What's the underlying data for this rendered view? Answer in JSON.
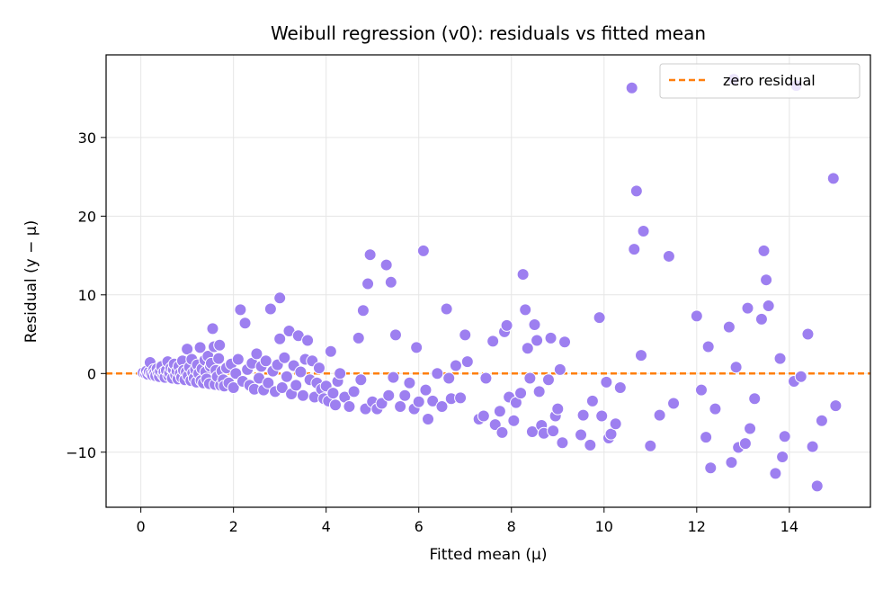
{
  "chart_data": {
    "type": "scatter",
    "title": "Weibull regression (v0): residuals vs fitted mean",
    "xlabel": "Fitted mean (μ)",
    "ylabel": "Residual (y − μ)",
    "xlim": [
      -0.75,
      15.75
    ],
    "ylim": [
      -17,
      40.5
    ],
    "xticks": [
      0,
      2,
      4,
      6,
      8,
      10,
      12,
      14
    ],
    "xtick_labels": [
      "0",
      "2",
      "4",
      "6",
      "8",
      "10",
      "12",
      "14"
    ],
    "yticks": [
      -10,
      0,
      10,
      20,
      30
    ],
    "ytick_labels": [
      "−10",
      "0",
      "10",
      "20",
      "30"
    ],
    "grid": true,
    "legend_position": "top-right",
    "reference_line": {
      "y": 0,
      "style": "dashed",
      "label": "zero residual",
      "color": "#ff7f0e"
    },
    "point_color": "#9d7ff0",
    "series": [
      {
        "points": [
          [
            0.05,
            0.1
          ],
          [
            0.1,
            0.0
          ],
          [
            0.12,
            0.3
          ],
          [
            0.15,
            -0.1
          ],
          [
            0.18,
            0.2
          ],
          [
            0.2,
            1.4
          ],
          [
            0.22,
            0.0
          ],
          [
            0.25,
            -0.2
          ],
          [
            0.28,
            0.5
          ],
          [
            0.3,
            0.1
          ],
          [
            0.32,
            -0.3
          ],
          [
            0.35,
            0.6
          ],
          [
            0.38,
            0.0
          ],
          [
            0.4,
            -0.4
          ],
          [
            0.42,
            0.3
          ],
          [
            0.45,
            0.9
          ],
          [
            0.48,
            -0.2
          ],
          [
            0.5,
            0.2
          ],
          [
            0.52,
            -0.5
          ],
          [
            0.55,
            0.4
          ],
          [
            0.58,
            1.5
          ],
          [
            0.6,
            -0.3
          ],
          [
            0.62,
            0.1
          ],
          [
            0.65,
            0.7
          ],
          [
            0.68,
            -0.6
          ],
          [
            0.7,
            0.5
          ],
          [
            0.72,
            1.2
          ],
          [
            0.75,
            -0.2
          ],
          [
            0.78,
            0.3
          ],
          [
            0.8,
            -0.7
          ],
          [
            0.82,
            0.9
          ],
          [
            0.85,
            0.0
          ],
          [
            0.88,
            -0.5
          ],
          [
            0.9,
            1.6
          ],
          [
            0.92,
            0.4
          ],
          [
            0.95,
            -0.8
          ],
          [
            0.98,
            0.2
          ],
          [
            1.0,
            3.1
          ],
          [
            1.02,
            -0.3
          ],
          [
            1.05,
            0.8
          ],
          [
            1.08,
            -0.9
          ],
          [
            1.1,
            1.8
          ],
          [
            1.12,
            0.1
          ],
          [
            1.15,
            -0.6
          ],
          [
            1.18,
            0.5
          ],
          [
            1.2,
            -1.1
          ],
          [
            1.22,
            1.1
          ],
          [
            1.25,
            0.0
          ],
          [
            1.28,
            3.3
          ],
          [
            1.3,
            -0.9
          ],
          [
            1.32,
            0.6
          ],
          [
            1.35,
            -1.2
          ],
          [
            1.38,
            1.7
          ],
          [
            1.4,
            0.2
          ],
          [
            1.42,
            -0.7
          ],
          [
            1.45,
            2.2
          ],
          [
            1.48,
            -1.3
          ],
          [
            1.5,
            0.9
          ],
          [
            1.52,
            1.3
          ],
          [
            1.55,
            5.7
          ],
          [
            1.58,
            3.4
          ],
          [
            1.6,
            -1.4
          ],
          [
            1.62,
            0.4
          ],
          [
            1.65,
            -0.4
          ],
          [
            1.68,
            1.9
          ],
          [
            1.7,
            3.6
          ],
          [
            1.72,
            -1.5
          ],
          [
            1.75,
            0.3
          ],
          [
            1.78,
            -0.8
          ],
          [
            1.8,
            -1.6
          ],
          [
            1.85,
            0.7
          ],
          [
            1.9,
            -1.2
          ],
          [
            1.95,
            1.2
          ],
          [
            2.0,
            -1.8
          ],
          [
            2.05,
            0.0
          ],
          [
            2.1,
            1.8
          ],
          [
            2.15,
            8.1
          ],
          [
            2.2,
            -1.0
          ],
          [
            2.25,
            6.4
          ],
          [
            2.3,
            0.5
          ],
          [
            2.35,
            -1.5
          ],
          [
            2.4,
            1.3
          ],
          [
            2.45,
            -2.0
          ],
          [
            2.5,
            2.5
          ],
          [
            2.55,
            -0.6
          ],
          [
            2.6,
            0.9
          ],
          [
            2.65,
            -2.1
          ],
          [
            2.7,
            1.6
          ],
          [
            2.75,
            -1.2
          ],
          [
            2.8,
            8.2
          ],
          [
            2.85,
            0.3
          ],
          [
            2.9,
            -2.3
          ],
          [
            2.95,
            1.1
          ],
          [
            3.0,
            9.6
          ],
          [
            3.0,
            4.4
          ],
          [
            3.05,
            -1.8
          ],
          [
            3.1,
            2.0
          ],
          [
            3.15,
            -0.4
          ],
          [
            3.2,
            5.4
          ],
          [
            3.25,
            -2.6
          ],
          [
            3.3,
            1.0
          ],
          [
            3.35,
            -1.5
          ],
          [
            3.4,
            4.8
          ],
          [
            3.45,
            0.2
          ],
          [
            3.5,
            -2.8
          ],
          [
            3.55,
            1.8
          ],
          [
            3.6,
            4.2
          ],
          [
            3.65,
            -0.8
          ],
          [
            3.7,
            1.6
          ],
          [
            3.75,
            -3.0
          ],
          [
            3.8,
            -1.2
          ],
          [
            3.85,
            0.7
          ],
          [
            3.9,
            -2.0
          ],
          [
            3.95,
            -3.2
          ],
          [
            4.0,
            -1.6
          ],
          [
            4.05,
            -3.5
          ],
          [
            4.1,
            2.8
          ],
          [
            4.15,
            -2.5
          ],
          [
            4.2,
            -4.0
          ],
          [
            4.25,
            -1.0
          ],
          [
            4.3,
            0.0
          ],
          [
            4.4,
            -3.0
          ],
          [
            4.5,
            -4.2
          ],
          [
            4.6,
            -2.3
          ],
          [
            4.7,
            4.5
          ],
          [
            4.75,
            -0.8
          ],
          [
            4.8,
            8.0
          ],
          [
            4.85,
            -4.5
          ],
          [
            4.9,
            11.4
          ],
          [
            4.95,
            15.1
          ],
          [
            5.0,
            -3.6
          ],
          [
            5.1,
            -4.5
          ],
          [
            5.2,
            -3.8
          ],
          [
            5.3,
            13.8
          ],
          [
            5.35,
            -2.8
          ],
          [
            5.4,
            11.6
          ],
          [
            5.45,
            -0.5
          ],
          [
            5.5,
            4.9
          ],
          [
            5.6,
            -4.2
          ],
          [
            5.7,
            -2.8
          ],
          [
            5.8,
            -1.2
          ],
          [
            5.9,
            -4.5
          ],
          [
            5.95,
            3.3
          ],
          [
            6.0,
            -3.6
          ],
          [
            6.1,
            15.6
          ],
          [
            6.15,
            -2.1
          ],
          [
            6.2,
            -5.8
          ],
          [
            6.3,
            -3.5
          ],
          [
            6.4,
            0.0
          ],
          [
            6.5,
            -4.2
          ],
          [
            6.6,
            8.2
          ],
          [
            6.65,
            -0.6
          ],
          [
            6.7,
            -3.2
          ],
          [
            6.8,
            1.0
          ],
          [
            6.9,
            -3.1
          ],
          [
            7.0,
            4.9
          ],
          [
            7.05,
            1.5
          ],
          [
            7.3,
            -5.8
          ],
          [
            7.4,
            -5.4
          ],
          [
            7.45,
            -0.6
          ],
          [
            7.6,
            4.1
          ],
          [
            7.65,
            -6.5
          ],
          [
            7.75,
            -4.8
          ],
          [
            7.8,
            -7.5
          ],
          [
            7.85,
            5.3
          ],
          [
            7.9,
            6.1
          ],
          [
            7.95,
            -3.0
          ],
          [
            8.05,
            -6.0
          ],
          [
            8.1,
            -3.7
          ],
          [
            8.2,
            -2.5
          ],
          [
            8.25,
            12.6
          ],
          [
            8.3,
            8.1
          ],
          [
            8.35,
            3.2
          ],
          [
            8.4,
            -0.6
          ],
          [
            8.45,
            -7.4
          ],
          [
            8.5,
            6.2
          ],
          [
            8.55,
            4.2
          ],
          [
            8.6,
            -2.3
          ],
          [
            8.65,
            -6.6
          ],
          [
            8.7,
            -7.6
          ],
          [
            8.8,
            -0.8
          ],
          [
            8.85,
            4.5
          ],
          [
            8.9,
            -7.3
          ],
          [
            8.95,
            -5.4
          ],
          [
            9.0,
            -4.5
          ],
          [
            9.05,
            0.5
          ],
          [
            9.1,
            -8.8
          ],
          [
            9.15,
            4.0
          ],
          [
            9.5,
            -7.8
          ],
          [
            9.55,
            -5.3
          ],
          [
            9.7,
            -9.1
          ],
          [
            9.75,
            -3.5
          ],
          [
            9.9,
            7.1
          ],
          [
            9.95,
            -5.4
          ],
          [
            10.05,
            -1.1
          ],
          [
            10.1,
            -8.2
          ],
          [
            10.15,
            -7.7
          ],
          [
            10.25,
            -6.4
          ],
          [
            10.35,
            -1.8
          ],
          [
            10.6,
            36.3
          ],
          [
            10.65,
            15.8
          ],
          [
            10.7,
            23.2
          ],
          [
            10.8,
            2.3
          ],
          [
            10.85,
            18.1
          ],
          [
            11.0,
            -9.2
          ],
          [
            11.2,
            -5.3
          ],
          [
            11.4,
            14.9
          ],
          [
            11.5,
            -3.8
          ],
          [
            12.0,
            7.3
          ],
          [
            12.1,
            -2.1
          ],
          [
            12.2,
            -8.1
          ],
          [
            12.25,
            3.4
          ],
          [
            12.3,
            -12.0
          ],
          [
            12.4,
            -4.5
          ],
          [
            12.7,
            5.9
          ],
          [
            12.75,
            -11.3
          ],
          [
            12.8,
            37.4
          ],
          [
            12.85,
            0.8
          ],
          [
            12.9,
            -9.4
          ],
          [
            13.05,
            -8.9
          ],
          [
            13.1,
            8.3
          ],
          [
            13.15,
            -7.0
          ],
          [
            13.25,
            -3.2
          ],
          [
            13.4,
            6.9
          ],
          [
            13.45,
            15.6
          ],
          [
            13.5,
            11.9
          ],
          [
            13.55,
            8.6
          ],
          [
            13.7,
            -12.7
          ],
          [
            13.8,
            1.9
          ],
          [
            13.85,
            -10.6
          ],
          [
            13.9,
            -8.0
          ],
          [
            14.1,
            -1.0
          ],
          [
            14.15,
            36.6
          ],
          [
            14.25,
            -0.4
          ],
          [
            14.4,
            5.0
          ],
          [
            14.5,
            -9.3
          ],
          [
            14.6,
            -14.3
          ],
          [
            14.7,
            -6.0
          ],
          [
            14.95,
            24.8
          ],
          [
            15.0,
            -4.1
          ]
        ]
      }
    ]
  }
}
